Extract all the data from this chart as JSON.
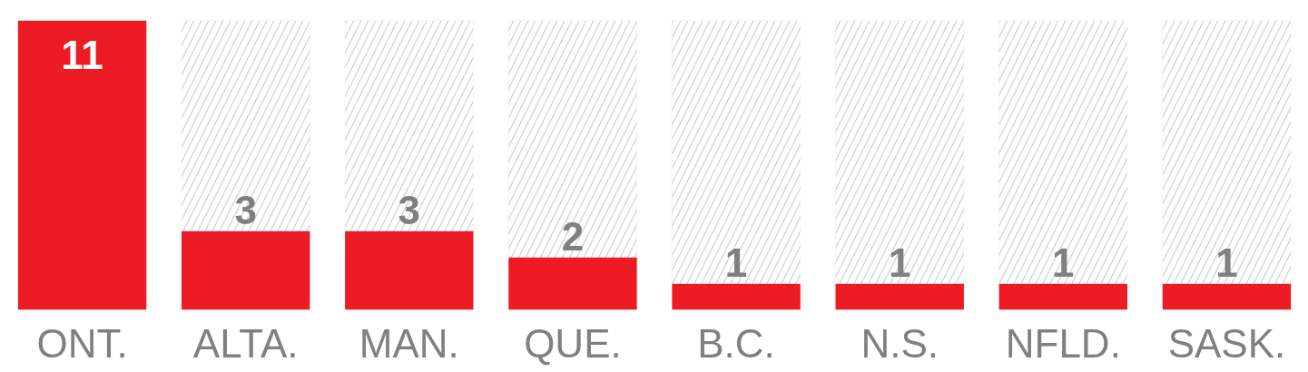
{
  "chart_data": {
    "type": "bar",
    "stacked": true,
    "categories": [
      "ONT.",
      "ALTA.",
      "MAN.",
      "QUE.",
      "B.C.",
      "N.S.",
      "NFLD.",
      "SASK."
    ],
    "series": [
      {
        "color": "#ed1c24",
        "values": [
          11,
          3,
          3,
          2,
          1,
          1,
          1,
          1
        ],
        "value_labels": [
          "11",
          "3",
          "3",
          "2",
          "1",
          "1",
          "1",
          "1"
        ]
      },
      {
        "color": "#cfd0d1",
        "values": [
          0,
          8,
          8,
          9,
          10,
          10,
          10,
          10
        ]
      }
    ],
    "tick_labels": "x",
    "grid": false
  }
}
